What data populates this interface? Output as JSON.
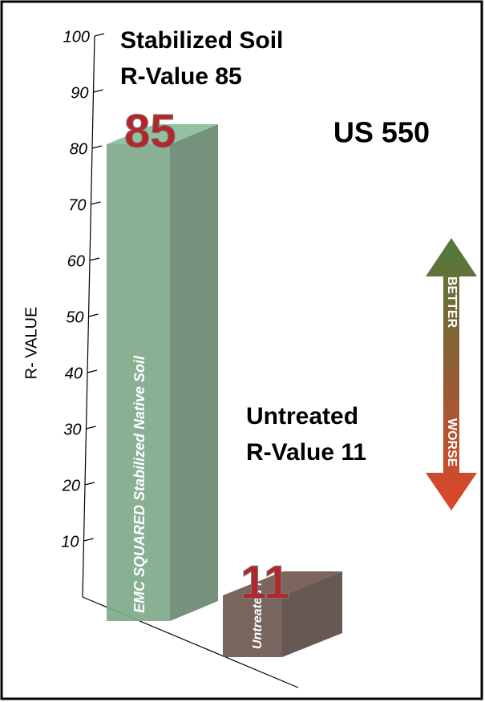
{
  "chart_data": {
    "type": "bar",
    "title": "US 550",
    "y_label": "R- VALUE",
    "categories": [
      "EMC SQUARED Stabilized Native Soil",
      "Untreated Native Soil"
    ],
    "values": [
      85,
      11
    ],
    "colors": [
      "#7fa98a",
      "#6b5850"
    ],
    "annotations": [
      [
        "Stabilized Soil",
        "R-Value 85"
      ],
      [
        "Untreated",
        "R-Value 11"
      ]
    ],
    "arrow_labels": [
      "BETTER",
      "WORSE"
    ],
    "ylim": [
      0,
      100
    ],
    "yticks": [
      10,
      20,
      30,
      40,
      50,
      60,
      70,
      80,
      90,
      100
    ]
  }
}
